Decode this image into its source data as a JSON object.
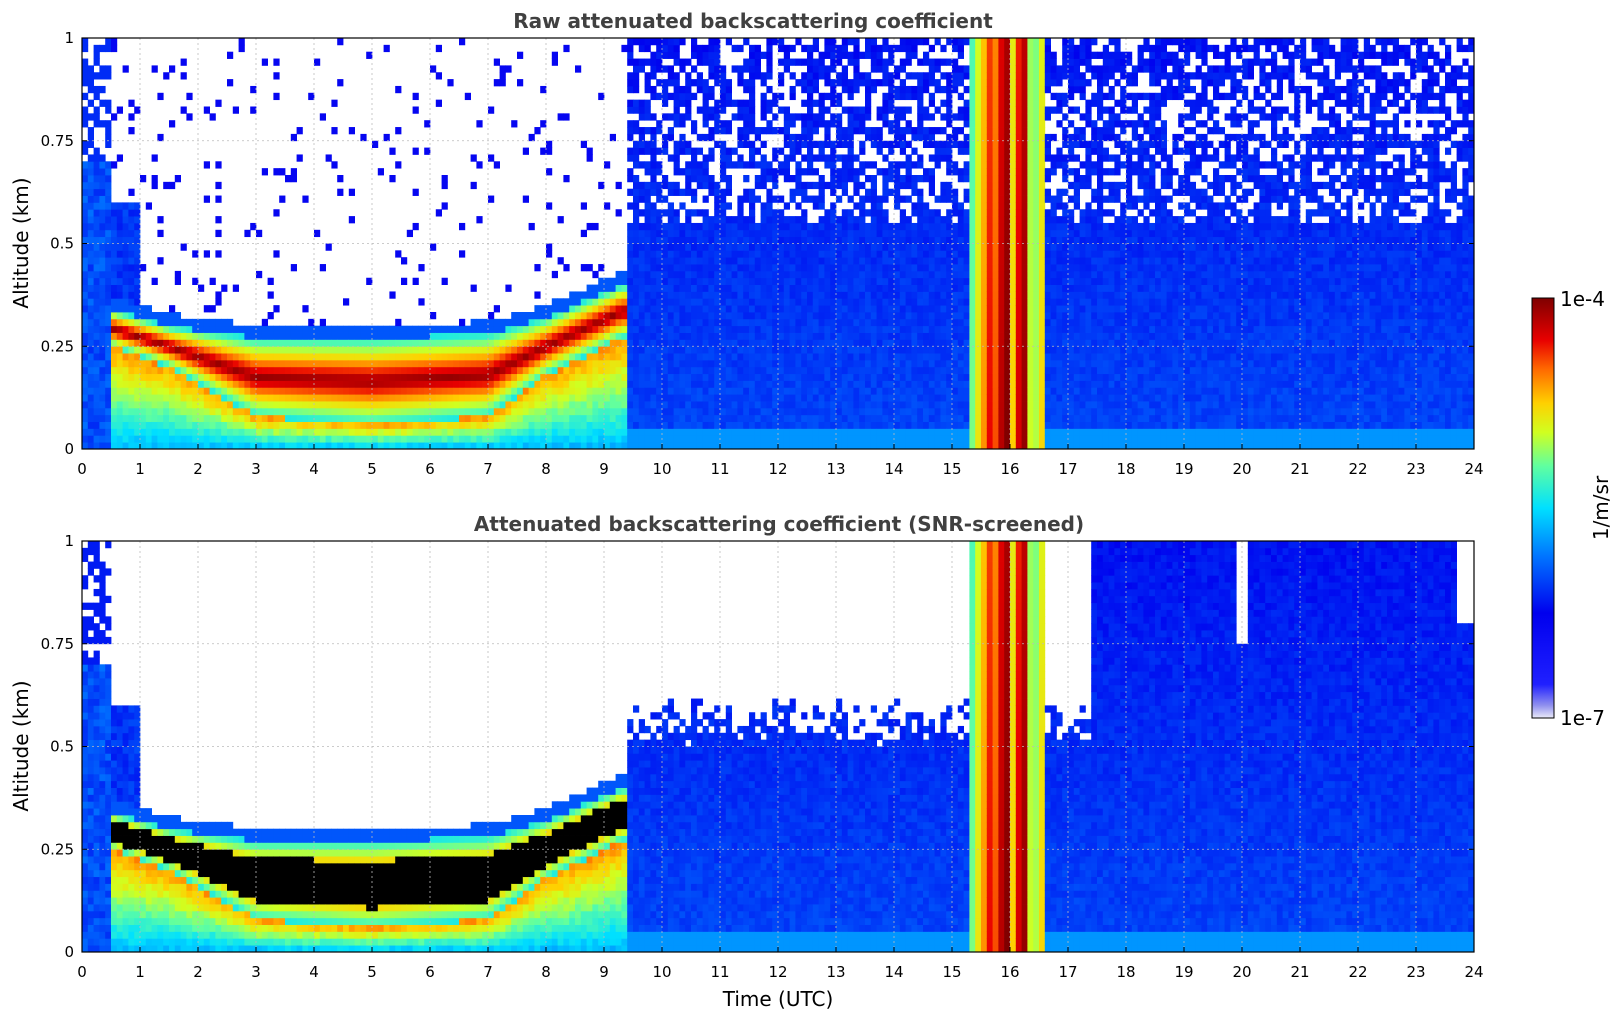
{
  "chart_data": [
    {
      "type": "heatmap",
      "title": "Raw attenuated backscattering coefficient",
      "xlabel": "",
      "ylabel": "Altitude (km)",
      "xlim": [
        0,
        24
      ],
      "ylim": [
        0,
        1
      ],
      "xticks": [
        "0",
        "1",
        "2",
        "3",
        "4",
        "5",
        "6",
        "7",
        "8",
        "9",
        "10",
        "11",
        "12",
        "13",
        "14",
        "15",
        "16",
        "17",
        "18",
        "19",
        "20",
        "21",
        "22",
        "23",
        "24"
      ],
      "yticks": [
        "0",
        "0.25",
        "0.5",
        "0.75",
        "1"
      ],
      "grid": true,
      "colorscale": "jet, log scale 1e-7 to 1e-4 1/m/sr",
      "features": {
        "dense_layer_hours": [
          0.5,
          9.4
        ],
        "dense_layer_base_km": [
          [
            0.5,
            0.25
          ],
          [
            1.5,
            0.2
          ],
          [
            3,
            0.08
          ],
          [
            5,
            0.06
          ],
          [
            7,
            0.08
          ],
          [
            8,
            0.18
          ],
          [
            9.3,
            0.27
          ]
        ],
        "dense_layer_top_km": [
          [
            0.5,
            0.34
          ],
          [
            1.5,
            0.3
          ],
          [
            3,
            0.27
          ],
          [
            5,
            0.27
          ],
          [
            7,
            0.28
          ],
          [
            8,
            0.32
          ],
          [
            9.3,
            0.4
          ]
        ],
        "precipitation_hours": [
          15.3,
          16.6
        ],
        "noisy_region_hours": [
          9.4,
          24
        ]
      }
    },
    {
      "type": "heatmap",
      "title": "Attenuated backscattering coefficient (SNR-screened)",
      "xlabel": "Time (UTC)",
      "ylabel": "Altitude (km)",
      "xlim": [
        0,
        24
      ],
      "ylim": [
        0,
        1
      ],
      "xticks": [
        "0",
        "1",
        "2",
        "3",
        "4",
        "5",
        "6",
        "7",
        "8",
        "9",
        "10",
        "11",
        "12",
        "13",
        "14",
        "15",
        "16",
        "17",
        "18",
        "19",
        "20",
        "21",
        "22",
        "23",
        "24"
      ],
      "yticks": [
        "0",
        "0.25",
        "0.5",
        "0.75",
        "1"
      ],
      "grid": true,
      "colorscale": "jet, log scale 1e-7 to 1e-4 1/m/sr; saturated values shown black",
      "features": {
        "dense_layer_hours": [
          0.5,
          9.4
        ],
        "precipitation_hours": [
          15.3,
          16.6
        ],
        "screened_out_above_km": [
          [
            9.4,
            0.55
          ],
          [
            12,
            0.55
          ],
          [
            14,
            0.55
          ],
          [
            16.8,
            0.55
          ],
          [
            17.5,
            1.0
          ]
        ]
      }
    }
  ],
  "colorbar": {
    "label": "1/m/sr",
    "max_label": "1e-4",
    "min_label": "1e-7"
  }
}
